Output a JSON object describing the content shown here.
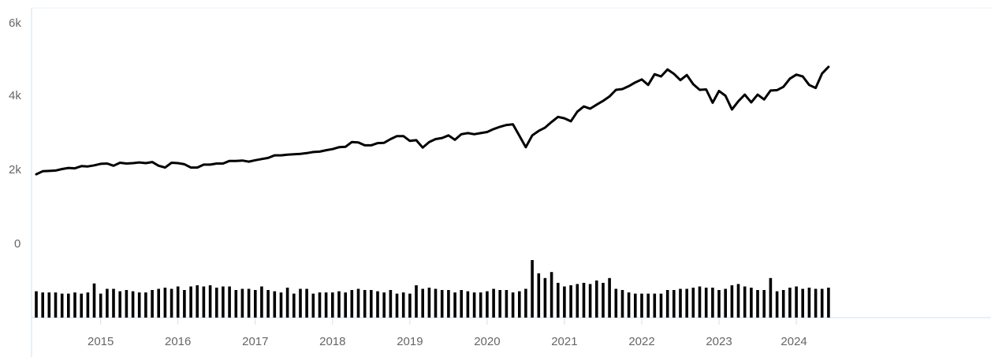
{
  "chart_data": {
    "type": "line",
    "title": "",
    "xlabel": "",
    "ylabel": "",
    "ylim": [
      0,
      6000
    ],
    "y_ticks": [
      "6k",
      "4k",
      "2k",
      "0"
    ],
    "y_tick_values": [
      6000,
      4000,
      2000,
      0
    ],
    "x_tick_labels": [
      "2015",
      "2016",
      "2017",
      "2018",
      "2019",
      "2020",
      "2021",
      "2022",
      "2023",
      "2024"
    ],
    "x_start": "2014-03",
    "x_end": "2024-01",
    "grid": false,
    "colors": {
      "line": "#000000",
      "bars": "#000000",
      "axis": "#cfe0f0",
      "tick_text": "#666666"
    },
    "series": [
      {
        "type": "line",
        "values": [
          1870,
          1950,
          1960,
          1970,
          2010,
          2040,
          2030,
          2090,
          2080,
          2110,
          2150,
          2160,
          2100,
          2180,
          2160,
          2170,
          2190,
          2170,
          2200,
          2100,
          2050,
          2180,
          2170,
          2140,
          2050,
          2050,
          2130,
          2130,
          2160,
          2160,
          2230,
          2230,
          2240,
          2210,
          2250,
          2280,
          2310,
          2380,
          2380,
          2400,
          2410,
          2420,
          2440,
          2470,
          2480,
          2520,
          2550,
          2600,
          2610,
          2740,
          2730,
          2650,
          2650,
          2710,
          2720,
          2820,
          2900,
          2900,
          2770,
          2790,
          2590,
          2740,
          2820,
          2850,
          2920,
          2800,
          2950,
          2980,
          2950,
          2980,
          3010,
          3090,
          3150,
          3200,
          3220,
          2910,
          2600,
          2920,
          3040,
          3130,
          3280,
          3420,
          3380,
          3300,
          3560,
          3700,
          3640,
          3750,
          3850,
          3970,
          4150,
          4170,
          4250,
          4350,
          4430,
          4280,
          4570,
          4510,
          4700,
          4580,
          4410,
          4550,
          4300,
          4150,
          4160,
          3800,
          4120,
          3990,
          3620,
          3840,
          4020,
          3810,
          4020,
          3890,
          4130,
          4140,
          4230,
          4450,
          4560,
          4510,
          4280,
          4200,
          4590,
          4770
        ]
      },
      {
        "type": "bar",
        "values": [
          4.4,
          4.2,
          4.2,
          4.2,
          4.0,
          4.0,
          4.2,
          4.0,
          4.2,
          5.7,
          4.0,
          4.8,
          4.8,
          4.4,
          4.6,
          4.4,
          4.2,
          4.2,
          4.6,
          4.8,
          5.0,
          4.8,
          5.2,
          4.6,
          5.2,
          5.4,
          5.2,
          5.4,
          5.0,
          5.2,
          5.2,
          4.6,
          4.8,
          4.8,
          4.6,
          5.2,
          4.6,
          4.4,
          4.2,
          5.0,
          4.0,
          4.8,
          4.8,
          4.0,
          4.2,
          4.2,
          4.2,
          4.4,
          4.2,
          4.6,
          4.8,
          4.6,
          4.6,
          4.4,
          4.2,
          4.6,
          4.0,
          4.2,
          4.0,
          5.4,
          4.8,
          5.0,
          4.8,
          4.6,
          4.6,
          4.2,
          4.6,
          4.4,
          4.2,
          4.2,
          4.4,
          4.8,
          4.6,
          4.6,
          4.2,
          4.4,
          4.8,
          9.6,
          7.4,
          6.6,
          7.6,
          5.8,
          5.2,
          5.4,
          5.6,
          5.8,
          5.6,
          6.2,
          5.8,
          6.6,
          4.8,
          4.6,
          4.2,
          4.0,
          4.0,
          4.0,
          4.0,
          4.0,
          4.6,
          4.6,
          4.8,
          4.8,
          5.0,
          5.2,
          5.0,
          5.0,
          4.6,
          4.8,
          5.4,
          5.6,
          5.2,
          5.0,
          4.6,
          4.6,
          6.6,
          4.4,
          4.6,
          5.0,
          5.2,
          4.8,
          5.0,
          4.8,
          4.8,
          5.0
        ]
      }
    ]
  }
}
